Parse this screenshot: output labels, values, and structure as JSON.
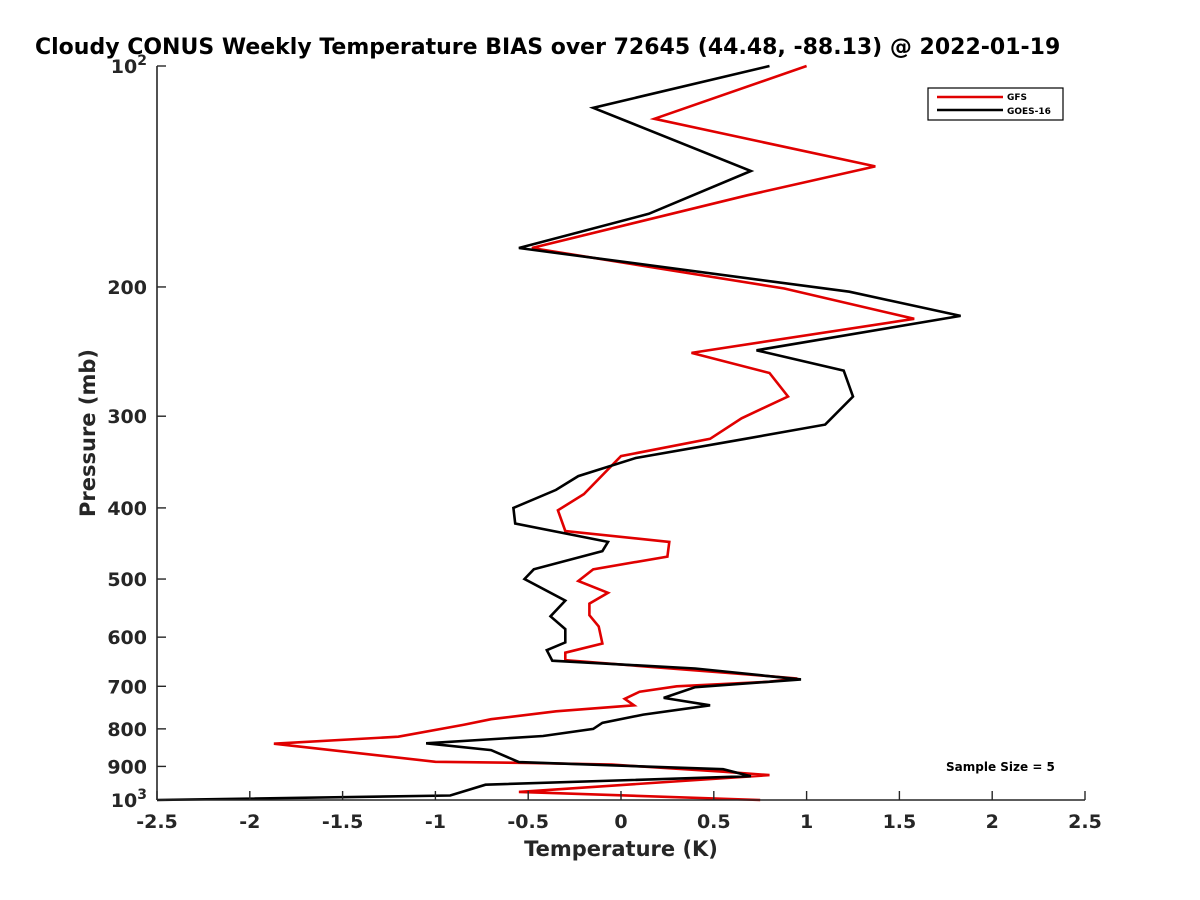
{
  "chart_data": {
    "type": "line",
    "title": "Cloudy CONUS Weekly Temperature BIAS over 72645 (44.48, -88.13) @ 2022-01-19",
    "xlabel": "Temperature (K)",
    "ylabel": "Pressure (mb)",
    "xlim": [
      -2.5,
      2.5
    ],
    "ylim": [
      1000,
      100
    ],
    "yscale": "log",
    "y_reversed": true,
    "x_ticks": [
      "-2.5",
      "-2",
      "-1.5",
      "-1",
      "-0.5",
      "0",
      "0.5",
      "1",
      "1.5",
      "2",
      "2.5"
    ],
    "y_ticks": [
      {
        "value": 100,
        "base": "10",
        "exp": "2",
        "label": ""
      },
      {
        "value": 200,
        "label": "200"
      },
      {
        "value": 300,
        "label": "300"
      },
      {
        "value": 400,
        "label": "400"
      },
      {
        "value": 500,
        "label": "500"
      },
      {
        "value": 600,
        "label": "600"
      },
      {
        "value": 700,
        "label": "700"
      },
      {
        "value": 800,
        "label": "800"
      },
      {
        "value": 900,
        "label": "900"
      },
      {
        "value": 1000,
        "base": "10",
        "exp": "3",
        "label": ""
      }
    ],
    "legend": {
      "position": "top-right"
    },
    "annotation": "Sample Size = 5",
    "series": [
      {
        "name": "GFS",
        "color": "#e00000",
        "points": [
          {
            "x": 0.75,
            "y": 1000
          },
          {
            "x": -0.55,
            "y": 975
          },
          {
            "x": 0.8,
            "y": 925
          },
          {
            "x": 0.55,
            "y": 915
          },
          {
            "x": -0.05,
            "y": 895
          },
          {
            "x": -0.5,
            "y": 890
          },
          {
            "x": -1.0,
            "y": 887
          },
          {
            "x": -1.87,
            "y": 838
          },
          {
            "x": -1.2,
            "y": 820
          },
          {
            "x": -0.85,
            "y": 790
          },
          {
            "x": -0.7,
            "y": 776
          },
          {
            "x": -0.35,
            "y": 757
          },
          {
            "x": 0.07,
            "y": 743
          },
          {
            "x": 0.02,
            "y": 728
          },
          {
            "x": 0.1,
            "y": 712
          },
          {
            "x": 0.3,
            "y": 700
          },
          {
            "x": 0.8,
            "y": 690
          },
          {
            "x": 0.95,
            "y": 683
          },
          {
            "x": 0.7,
            "y": 675
          },
          {
            "x": -0.3,
            "y": 645
          },
          {
            "x": -0.3,
            "y": 630
          },
          {
            "x": -0.1,
            "y": 612
          },
          {
            "x": -0.12,
            "y": 580
          },
          {
            "x": -0.17,
            "y": 560
          },
          {
            "x": -0.17,
            "y": 540
          },
          {
            "x": -0.07,
            "y": 522
          },
          {
            "x": -0.23,
            "y": 503
          },
          {
            "x": -0.15,
            "y": 485
          },
          {
            "x": 0.25,
            "y": 466
          },
          {
            "x": 0.26,
            "y": 445
          },
          {
            "x": -0.3,
            "y": 430
          },
          {
            "x": -0.34,
            "y": 403
          },
          {
            "x": -0.2,
            "y": 383
          },
          {
            "x": 0.0,
            "y": 340
          },
          {
            "x": 0.48,
            "y": 322
          },
          {
            "x": 0.65,
            "y": 302
          },
          {
            "x": 0.9,
            "y": 282
          },
          {
            "x": 0.8,
            "y": 262
          },
          {
            "x": 0.38,
            "y": 246
          },
          {
            "x": 1.58,
            "y": 221
          },
          {
            "x": 0.88,
            "y": 201
          },
          {
            "x": -0.48,
            "y": 177
          },
          {
            "x": 0.68,
            "y": 150
          },
          {
            "x": 1.37,
            "y": 137
          },
          {
            "x": 0.18,
            "y": 118
          },
          {
            "x": 1.0,
            "y": 100
          }
        ]
      },
      {
        "name": "GOES-16",
        "color": "#000000",
        "points": [
          {
            "x": -2.5,
            "y": 1000
          },
          {
            "x": -0.92,
            "y": 986
          },
          {
            "x": -0.73,
            "y": 953
          },
          {
            "x": 0.7,
            "y": 928
          },
          {
            "x": 0.55,
            "y": 908
          },
          {
            "x": -0.55,
            "y": 888
          },
          {
            "x": -0.7,
            "y": 855
          },
          {
            "x": -1.05,
            "y": 837
          },
          {
            "x": -0.42,
            "y": 818
          },
          {
            "x": -0.15,
            "y": 800
          },
          {
            "x": -0.1,
            "y": 785
          },
          {
            "x": 0.12,
            "y": 765
          },
          {
            "x": 0.48,
            "y": 743
          },
          {
            "x": 0.23,
            "y": 726
          },
          {
            "x": 0.4,
            "y": 702
          },
          {
            "x": 0.97,
            "y": 685
          },
          {
            "x": 0.4,
            "y": 662
          },
          {
            "x": -0.37,
            "y": 646
          },
          {
            "x": -0.4,
            "y": 625
          },
          {
            "x": -0.3,
            "y": 610
          },
          {
            "x": -0.3,
            "y": 585
          },
          {
            "x": -0.38,
            "y": 562
          },
          {
            "x": -0.3,
            "y": 535
          },
          {
            "x": -0.52,
            "y": 500
          },
          {
            "x": -0.47,
            "y": 485
          },
          {
            "x": -0.1,
            "y": 458
          },
          {
            "x": -0.07,
            "y": 445
          },
          {
            "x": -0.57,
            "y": 420
          },
          {
            "x": -0.58,
            "y": 400
          },
          {
            "x": -0.35,
            "y": 378
          },
          {
            "x": -0.23,
            "y": 362
          },
          {
            "x": 0.08,
            "y": 342
          },
          {
            "x": 0.67,
            "y": 322
          },
          {
            "x": 1.1,
            "y": 308
          },
          {
            "x": 1.25,
            "y": 282
          },
          {
            "x": 1.2,
            "y": 260
          },
          {
            "x": 0.73,
            "y": 244
          },
          {
            "x": 1.83,
            "y": 219
          },
          {
            "x": 1.23,
            "y": 203
          },
          {
            "x": -0.55,
            "y": 177
          },
          {
            "x": 0.15,
            "y": 159
          },
          {
            "x": 0.7,
            "y": 139
          },
          {
            "x": -0.15,
            "y": 114
          },
          {
            "x": 0.8,
            "y": 100
          }
        ]
      }
    ]
  }
}
